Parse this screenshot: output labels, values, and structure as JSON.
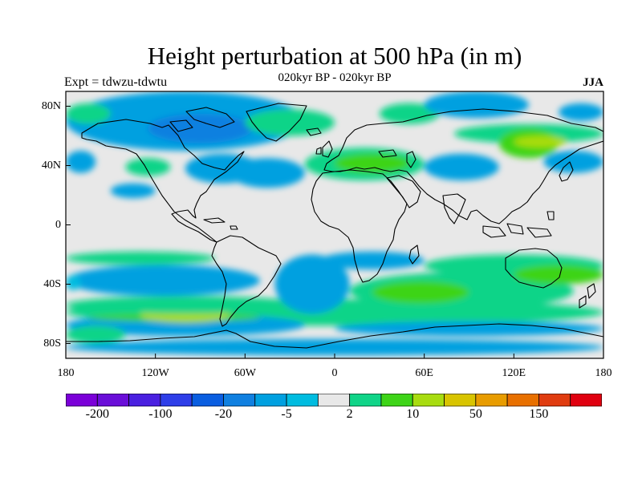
{
  "title": "Height perturbation at 500 hPa (in m)",
  "subtitle": "020kyr BP - 020kyr BP",
  "left_label": "Expt = tdwzu-tdwtu",
  "right_label": "JJA",
  "chart_data": {
    "type": "heatmap",
    "projection": "cylindrical-equidistant",
    "x_range": [
      -180,
      180
    ],
    "y_range": [
      -90,
      90
    ],
    "lat_ticks": [
      {
        "value": 80,
        "label": "80N"
      },
      {
        "value": 40,
        "label": "40N"
      },
      {
        "value": 0,
        "label": "0"
      },
      {
        "value": -40,
        "label": "40S"
      },
      {
        "value": -80,
        "label": "80S"
      }
    ],
    "lon_ticks": [
      {
        "value": -180,
        "label": "180"
      },
      {
        "value": -120,
        "label": "120W"
      },
      {
        "value": -60,
        "label": "60W"
      },
      {
        "value": 0,
        "label": "0"
      },
      {
        "value": 60,
        "label": "60E"
      },
      {
        "value": 120,
        "label": "120E"
      },
      {
        "value": 180,
        "label": "180"
      }
    ],
    "colorbar": {
      "colors": [
        "#7b00d8",
        "#6a0ed8",
        "#4a20e0",
        "#2e3ee8",
        "#0a5ee0",
        "#1080e0",
        "#00a0e0",
        "#00bce0",
        "#e8e8e8",
        "#10d488",
        "#3ed418",
        "#a8dc10",
        "#d8c400",
        "#e89c00",
        "#e87000",
        "#e03c10",
        "#e00010"
      ],
      "neutral_color": "#e8e8e8",
      "tick_labels": [
        {
          "label": "-200",
          "boundary": 1
        },
        {
          "label": "-100",
          "boundary": 3
        },
        {
          "label": "-20",
          "boundary": 5
        },
        {
          "label": "-5",
          "boundary": 7
        },
        {
          "label": "2",
          "boundary": 9
        },
        {
          "label": "10",
          "boundary": 11
        },
        {
          "label": "50",
          "boundary": 13
        },
        {
          "label": "150",
          "boundary": 15
        }
      ]
    },
    "regions": [
      {
        "lon": [
          -180,
          180
        ],
        "lat": [
          -68,
          -50
        ],
        "level": 9
      },
      {
        "lon": [
          -180,
          -20
        ],
        "lat": [
          -75,
          -60
        ],
        "level": 6
      },
      {
        "lon": [
          -165,
          -50
        ],
        "lat": [
          -65,
          -60
        ],
        "level": 10
      },
      {
        "lon": [
          -130,
          -70
        ],
        "lat": [
          -66,
          -56
        ],
        "level": 11
      },
      {
        "lon": [
          -180,
          -20
        ],
        "lat": [
          -60,
          -48
        ],
        "level": 9
      },
      {
        "lon": [
          -180,
          -50
        ],
        "lat": [
          -48,
          -27
        ],
        "level": 6
      },
      {
        "lon": [
          -180,
          -80
        ],
        "lat": [
          -27,
          -18
        ],
        "level": 9
      },
      {
        "lon": [
          -180,
          180
        ],
        "lat": [
          -88,
          -77
        ],
        "level": 6
      },
      {
        "lon": [
          -180,
          -140
        ],
        "lat": [
          -80,
          -68
        ],
        "level": 9
      },
      {
        "lon": [
          -180,
          -170
        ],
        "lat": [
          -44,
          -34
        ],
        "level": 7
      },
      {
        "lon": [
          -40,
          10
        ],
        "lat": [
          -60,
          -20
        ],
        "level": 6
      },
      {
        "lon": [
          0,
          180
        ],
        "lat": [
          -75,
          -65
        ],
        "level": 6
      },
      {
        "lon": [
          10,
          160
        ],
        "lat": [
          -57,
          -32
        ],
        "level": 9
      },
      {
        "lon": [
          25,
          90
        ],
        "lat": [
          -53,
          -38
        ],
        "level": 10
      },
      {
        "lon": [
          60,
          180
        ],
        "lat": [
          -35,
          -20
        ],
        "level": 9
      },
      {
        "lon": [
          120,
          180
        ],
        "lat": [
          -40,
          -27
        ],
        "level": 10
      },
      {
        "lon": [
          -10,
          60
        ],
        "lat": [
          -30,
          -18
        ],
        "level": 6
      },
      {
        "lon": [
          -180,
          -20
        ],
        "lat": [
          50,
          90
        ],
        "level": 6
      },
      {
        "lon": [
          -180,
          -150
        ],
        "lat": [
          68,
          82
        ],
        "level": 9
      },
      {
        "lon": [
          -125,
          -55
        ],
        "lat": [
          55,
          75
        ],
        "level": 5
      },
      {
        "lon": [
          -100,
          -50
        ],
        "lat": [
          28,
          48
        ],
        "level": 6
      },
      {
        "lon": [
          -140,
          -110
        ],
        "lat": [
          33,
          45
        ],
        "level": 9
      },
      {
        "lon": [
          -150,
          -120
        ],
        "lat": [
          18,
          28
        ],
        "level": 6
      },
      {
        "lon": [
          -60,
          0
        ],
        "lat": [
          60,
          78
        ],
        "level": 9
      },
      {
        "lon": [
          -70,
          -20
        ],
        "lat": [
          25,
          45
        ],
        "level": 6
      },
      {
        "lon": [
          -20,
          60
        ],
        "lat": [
          30,
          52
        ],
        "level": 9
      },
      {
        "lon": [
          0,
          50
        ],
        "lat": [
          35,
          48
        ],
        "level": 10
      },
      {
        "lon": [
          30,
          70
        ],
        "lat": [
          68,
          82
        ],
        "level": 9
      },
      {
        "lon": [
          60,
          130
        ],
        "lat": [
          72,
          90
        ],
        "level": 6
      },
      {
        "lon": [
          80,
          180
        ],
        "lat": [
          55,
          68
        ],
        "level": 9
      },
      {
        "lon": [
          110,
          150
        ],
        "lat": [
          45,
          65
        ],
        "level": 10
      },
      {
        "lon": [
          120,
          155
        ],
        "lat": [
          52,
          60
        ],
        "level": 11
      },
      {
        "lon": [
          60,
          110
        ],
        "lat": [
          30,
          48
        ],
        "level": 6
      },
      {
        "lon": [
          140,
          180
        ],
        "lat": [
          35,
          50
        ],
        "level": 6
      },
      {
        "lon": [
          -180,
          -160
        ],
        "lat": [
          35,
          50
        ],
        "level": 6
      },
      {
        "lon": [
          150,
          180
        ],
        "lat": [
          70,
          82
        ],
        "level": 6
      }
    ]
  }
}
